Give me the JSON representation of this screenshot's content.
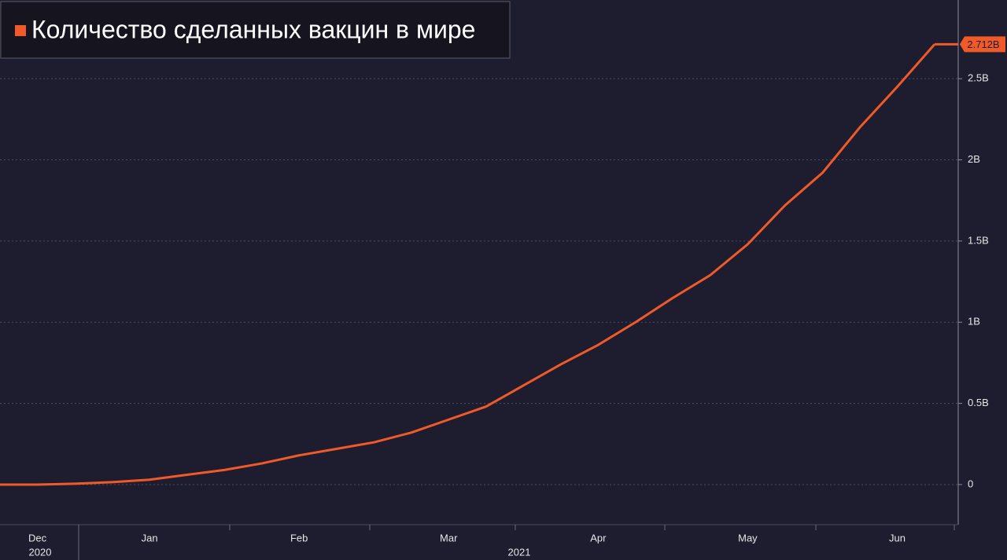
{
  "chart_data": {
    "type": "line",
    "title": "Количество сделанных вакцин в мире",
    "categories": [
      null,
      "Dec",
      null,
      null,
      "Jan",
      null,
      null,
      null,
      "Feb",
      null,
      null,
      null,
      "Mar",
      null,
      null,
      null,
      "Apr",
      null,
      null,
      null,
      "May",
      null,
      null,
      null,
      "Jun",
      null
    ],
    "x_groups": [
      "2020",
      "2021"
    ],
    "series": [
      {
        "name": "Количество сделанных вакцин в мире",
        "color": "#f05a28",
        "values": [
          0,
          0,
          0.005,
          0.015,
          0.03,
          0.06,
          0.09,
          0.13,
          0.18,
          0.22,
          0.26,
          0.32,
          0.4,
          0.48,
          0.61,
          0.74,
          0.86,
          1.0,
          1.15,
          1.29,
          1.48,
          1.72,
          1.92,
          2.2,
          2.45,
          2.712
        ],
        "value_labels": [
          null,
          null,
          null,
          null,
          null,
          null,
          null,
          null,
          null,
          null,
          null,
          null,
          null,
          null,
          null,
          null,
          null,
          null,
          null,
          null,
          null,
          null,
          null,
          null,
          null,
          "2.712B"
        ]
      }
    ],
    "ylim": [
      -0.247,
      2.97
    ],
    "yticks": [
      0,
      {
        "value": 0.5,
        "label": "0.5B"
      },
      {
        "value": 1,
        "label": "1B"
      },
      {
        "value": 1.5,
        "label": "1.5B"
      },
      {
        "value": 2,
        "label": "2B"
      },
      {
        "value": 2.5,
        "label": "2.5B"
      }
    ],
    "grid": true
  }
}
